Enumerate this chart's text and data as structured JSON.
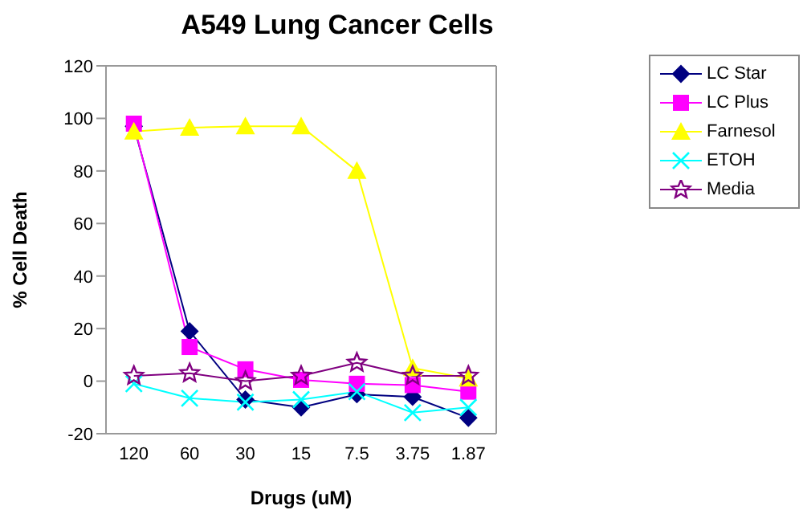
{
  "chart_data": {
    "type": "line",
    "title": "A549 Lung Cancer Cells",
    "xlabel": "Drugs (uM)",
    "ylabel": "% Cell Death",
    "categories": [
      "120",
      "60",
      "30",
      "15",
      "7.5",
      "3.75",
      "1.87"
    ],
    "series": [
      {
        "name": "LC Star",
        "color": "#000080",
        "marker": "diamond",
        "values": [
          97,
          19,
          -7,
          -10,
          -5,
          -6,
          -14
        ]
      },
      {
        "name": "LC Plus",
        "color": "#ff00ff",
        "marker": "square",
        "values": [
          98,
          13,
          4.5,
          0.5,
          -1,
          -1.5,
          -4
        ]
      },
      {
        "name": "Farnesol",
        "color": "#ffff00",
        "marker": "triangle",
        "values": [
          95,
          96.5,
          97,
          97,
          80,
          5,
          1
        ]
      },
      {
        "name": "ETOH",
        "color": "#00ffff",
        "marker": "cross",
        "values": [
          -1,
          -6.5,
          -8,
          -7,
          -4,
          -12,
          -10
        ]
      },
      {
        "name": "Media",
        "color": "#800080",
        "marker": "star",
        "values": [
          2,
          3,
          0,
          2,
          7,
          2,
          2
        ]
      }
    ],
    "ylim": [
      -20,
      120
    ],
    "yticks": [
      -20,
      0,
      20,
      40,
      60,
      80,
      100,
      120
    ],
    "grid": false,
    "legend": "right"
  }
}
